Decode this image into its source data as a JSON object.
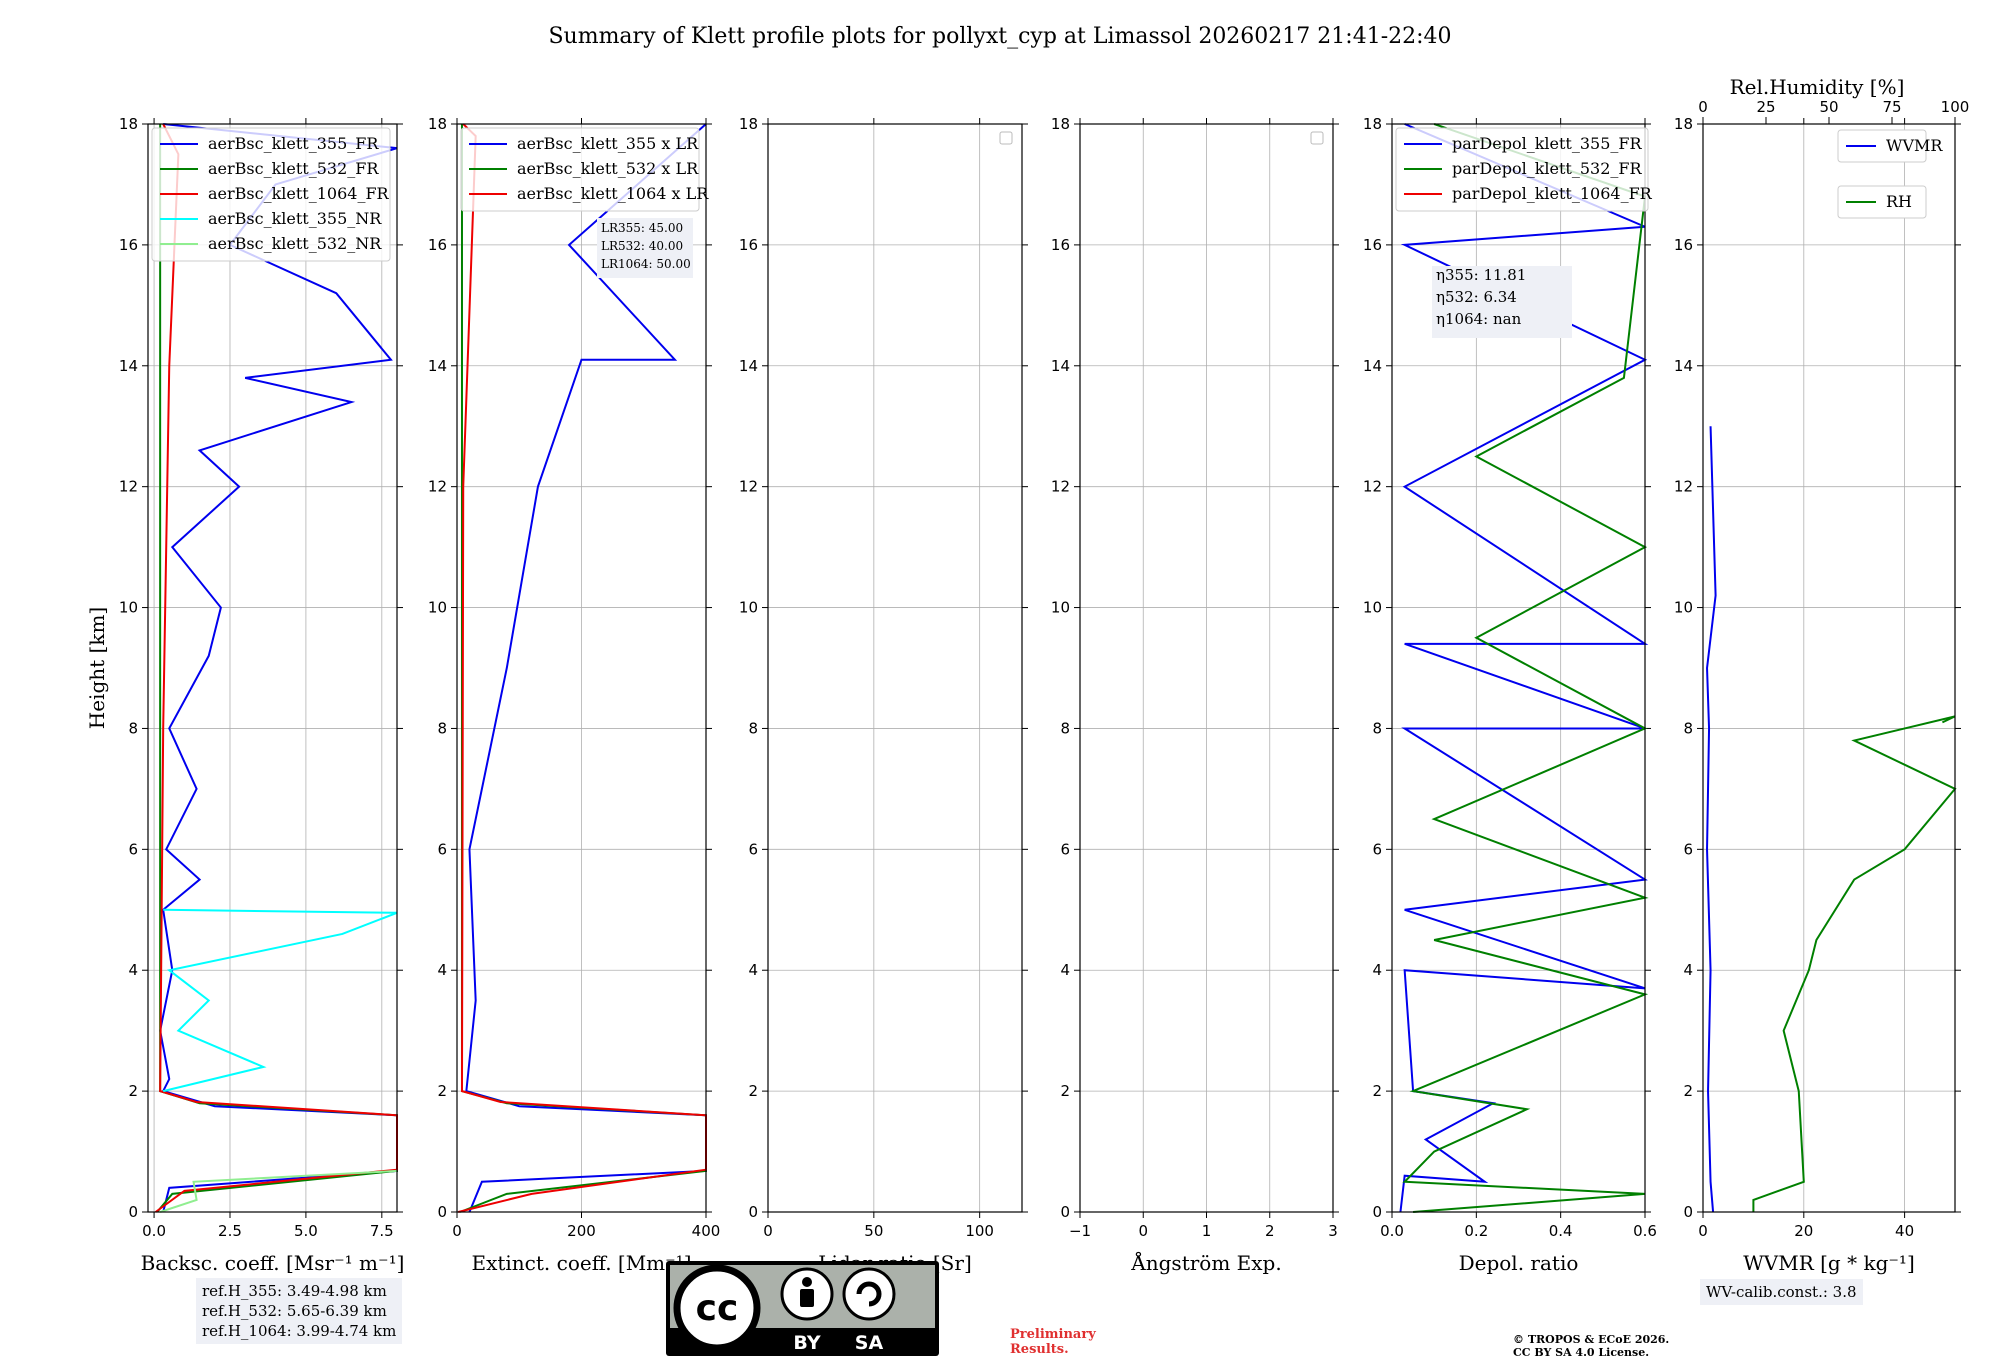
{
  "title": "Summary of Klett profile plots for pollyxt_cyp at Limassol 20260217 21:41-22:40",
  "colors": {
    "c355": "#0000ee",
    "c532": "#008000",
    "c1064": "#ee0000",
    "c355nr": "#00ffff",
    "c532nr": "#90ee90"
  },
  "chart_data": [
    {
      "type": "line",
      "name": "backscatter",
      "xlabel": "Backsc. coeff. [Msr⁻¹ m⁻¹]",
      "ylabel": "Height [km]",
      "xlim": [
        -0.2,
        8.0
      ],
      "ylim": [
        0,
        18
      ],
      "xticks": [
        "0.0",
        "2.5",
        "5.0",
        "7.5"
      ],
      "xtick_values": [
        0,
        2.5,
        5,
        7.5
      ],
      "yticks": [
        "0",
        "2",
        "4",
        "6",
        "8",
        "10",
        "12",
        "14",
        "16",
        "18"
      ],
      "legend": [
        "aerBsc_klett_355_FR",
        "aerBsc_klett_532_FR",
        "aerBsc_klett_1064_FR",
        "aerBsc_klett_355_NR",
        "aerBsc_klett_532_NR"
      ],
      "series": [
        {
          "name": "aerBsc_klett_355_FR",
          "points": [
            [
              0.3,
              0
            ],
            [
              0.5,
              0.4
            ],
            [
              8,
              0.68
            ],
            [
              8,
              1.6
            ],
            [
              2.0,
              1.75
            ],
            [
              0.3,
              2.0
            ],
            [
              0.5,
              2.2
            ],
            [
              0.2,
              3.0
            ],
            [
              0.6,
              4.0
            ],
            [
              0.3,
              5.0
            ],
            [
              1.5,
              5.5
            ],
            [
              0.4,
              6.0
            ],
            [
              1.4,
              7.0
            ],
            [
              0.5,
              8.0
            ],
            [
              1.8,
              9.2
            ],
            [
              2.2,
              10.0
            ],
            [
              0.6,
              11.0
            ],
            [
              2.8,
              12.0
            ],
            [
              1.5,
              12.6
            ],
            [
              6.5,
              13.4
            ],
            [
              3.0,
              13.8
            ],
            [
              7.8,
              14.1
            ],
            [
              6.0,
              15.2
            ],
            [
              2.5,
              16.0
            ],
            [
              4.0,
              17.0
            ],
            [
              8,
              17.6
            ],
            [
              0.3,
              18
            ]
          ]
        },
        {
          "name": "aerBsc_klett_532_FR",
          "points": [
            [
              0.1,
              0
            ],
            [
              0.6,
              0.3
            ],
            [
              8,
              0.68
            ],
            [
              8,
              1.6
            ],
            [
              1.5,
              1.8
            ],
            [
              0.2,
              2.0
            ],
            [
              0.2,
              18
            ]
          ]
        },
        {
          "name": "aerBsc_klett_1064_FR",
          "points": [
            [
              0.05,
              0
            ],
            [
              1.0,
              0.35
            ],
            [
              8,
              0.7
            ],
            [
              8,
              1.6
            ],
            [
              1.4,
              1.82
            ],
            [
              0.2,
              2.0
            ],
            [
              0.3,
              8.0
            ],
            [
              0.5,
              14.0
            ],
            [
              0.8,
              17.5
            ],
            [
              0.3,
              18
            ]
          ]
        },
        {
          "name": "aerBsc_klett_355_NR",
          "points": [
            [
              0.3,
              2.0
            ],
            [
              3.6,
              2.4
            ],
            [
              0.8,
              3.0
            ],
            [
              1.8,
              3.5
            ],
            [
              0.5,
              4.0
            ],
            [
              6.2,
              4.6
            ],
            [
              8,
              4.95
            ],
            [
              0.3,
              5.0
            ]
          ]
        },
        {
          "name": "aerBsc_klett_532_NR",
          "points": [
            [
              0.2,
              0
            ],
            [
              1.4,
              0.2
            ],
            [
              1.3,
              0.5
            ],
            [
              8,
              0.68
            ]
          ]
        }
      ]
    },
    {
      "type": "line",
      "name": "extinction",
      "xlabel": "Extinct. coeff. [Mm⁻¹]",
      "xlim": [
        0,
        400
      ],
      "ylim": [
        0,
        18
      ],
      "xticks": [
        "0",
        "200",
        "400"
      ],
      "xtick_values": [
        0,
        200,
        400
      ],
      "yticks": [
        "0",
        "2",
        "4",
        "6",
        "8",
        "10",
        "12",
        "14",
        "16",
        "18"
      ],
      "legend": [
        "aerBsc_klett_355 x LR",
        "aerBsc_klett_532 x LR",
        "aerBsc_klett_1064 x LR"
      ],
      "annotation": [
        "LR355: 45.00",
        "LR532: 40.00",
        "LR1064: 50.00"
      ],
      "series": [
        {
          "name": "aerBsc_klett_355 x LR",
          "points": [
            [
              20,
              0
            ],
            [
              40,
              0.5
            ],
            [
              400,
              0.68
            ],
            [
              400,
              1.6
            ],
            [
              100,
              1.75
            ],
            [
              15,
              2.0
            ],
            [
              30,
              3.5
            ],
            [
              20,
              6.0
            ],
            [
              80,
              9.0
            ],
            [
              130,
              12.0
            ],
            [
              200,
              14.1
            ],
            [
              350,
              14.1
            ],
            [
              180,
              16.0
            ],
            [
              400,
              18
            ]
          ]
        },
        {
          "name": "aerBsc_klett_532 x LR",
          "points": [
            [
              5,
              0
            ],
            [
              80,
              0.3
            ],
            [
              400,
              0.68
            ],
            [
              400,
              1.6
            ],
            [
              80,
              1.8
            ],
            [
              8,
              2.0
            ],
            [
              8,
              18
            ]
          ]
        },
        {
          "name": "aerBsc_klett_1064 x LR",
          "points": [
            [
              2,
              0
            ],
            [
              120,
              0.3
            ],
            [
              400,
              0.7
            ],
            [
              400,
              1.6
            ],
            [
              70,
              1.82
            ],
            [
              8,
              2.0
            ],
            [
              10,
              12.0
            ],
            [
              30,
              17.8
            ],
            [
              10,
              18
            ]
          ]
        }
      ]
    },
    {
      "type": "line",
      "name": "lidar-ratio",
      "xlabel": "Lidar ratio [Sr]",
      "xlim": [
        0,
        120
      ],
      "ylim": [
        0,
        18
      ],
      "xticks": [
        "0",
        "50",
        "100"
      ],
      "xtick_values": [
        0,
        50,
        100
      ],
      "yticks": [
        "0",
        "2",
        "4",
        "6",
        "8",
        "10",
        "12",
        "14",
        "16",
        "18"
      ],
      "series": []
    },
    {
      "type": "line",
      "name": "angstrom",
      "xlabel": "Ångström Exp.",
      "xlim": [
        -1,
        3
      ],
      "ylim": [
        0,
        18
      ],
      "xticks": [
        "−1",
        "0",
        "1",
        "2",
        "3"
      ],
      "xtick_values": [
        -1,
        0,
        1,
        2,
        3
      ],
      "yticks": [
        "0",
        "2",
        "4",
        "6",
        "8",
        "10",
        "12",
        "14",
        "16",
        "18"
      ],
      "series": []
    },
    {
      "type": "line",
      "name": "depolarization",
      "xlabel": "Depol. ratio",
      "xlim": [
        0,
        0.6
      ],
      "ylim": [
        0,
        18
      ],
      "xticks": [
        "0.0",
        "0.2",
        "0.4",
        "0.6"
      ],
      "xtick_values": [
        0,
        0.2,
        0.4,
        0.6
      ],
      "yticks": [
        "0",
        "2",
        "4",
        "6",
        "8",
        "10",
        "12",
        "14",
        "16",
        "18"
      ],
      "legend": [
        "parDepol_klett_355_FR",
        "parDepol_klett_532_FR",
        "parDepol_klett_1064_FR"
      ],
      "annotation": [
        "η355: 11.81",
        "η532: 6.34",
        "η1064: nan"
      ],
      "series": [
        {
          "name": "parDepol_klett_355_FR",
          "points": [
            [
              0.02,
              0
            ],
            [
              0.03,
              0.6
            ],
            [
              0.22,
              0.5
            ],
            [
              0.08,
              1.2
            ],
            [
              0.24,
              1.8
            ],
            [
              0.05,
              2.0
            ],
            [
              0.03,
              4.0
            ],
            [
              0.6,
              3.7
            ],
            [
              0.03,
              5.0
            ],
            [
              0.6,
              5.5
            ],
            [
              0.03,
              8.0
            ],
            [
              0.6,
              8.0
            ],
            [
              0.03,
              9.4
            ],
            [
              0.6,
              9.4
            ],
            [
              0.03,
              12.0
            ],
            [
              0.6,
              14.1
            ],
            [
              0.03,
              16.0
            ],
            [
              0.6,
              16.3
            ],
            [
              0.03,
              18
            ]
          ]
        },
        {
          "name": "parDepol_klett_532_FR",
          "points": [
            [
              0.05,
              0
            ],
            [
              0.6,
              0.3
            ],
            [
              0.03,
              0.5
            ],
            [
              0.1,
              1.0
            ],
            [
              0.32,
              1.7
            ],
            [
              0.05,
              2.0
            ],
            [
              0.6,
              3.6
            ],
            [
              0.1,
              4.5
            ],
            [
              0.6,
              5.2
            ],
            [
              0.1,
              6.5
            ],
            [
              0.6,
              8.0
            ],
            [
              0.2,
              9.5
            ],
            [
              0.6,
              11.0
            ],
            [
              0.2,
              12.5
            ],
            [
              0.55,
              13.8
            ],
            [
              0.6,
              16.8
            ],
            [
              0.1,
              18
            ]
          ]
        },
        {
          "name": "parDepol_klett_1064_FR",
          "points": []
        }
      ]
    },
    {
      "type": "line",
      "name": "water-vapor",
      "xlabel": "WVMR [g * kg⁻¹]",
      "xlabel_top": "Rel.Humidity [%]",
      "xlim": [
        0,
        50
      ],
      "xlim_top": [
        0,
        100
      ],
      "ylim": [
        0,
        18
      ],
      "xticks": [
        "0",
        "20",
        "40"
      ],
      "xtick_values": [
        0,
        20,
        40
      ],
      "xticks_top": [
        "0",
        "25",
        "50",
        "75",
        "100"
      ],
      "xtick_top_values": [
        0,
        25,
        50,
        75,
        100
      ],
      "yticks": [
        "0",
        "2",
        "4",
        "6",
        "8",
        "10",
        "12",
        "14",
        "16",
        "18"
      ],
      "legend": [
        "WVMR",
        "RH"
      ],
      "series": [
        {
          "name": "WVMR",
          "axis": "bottom",
          "points": [
            [
              2,
              0
            ],
            [
              1.5,
              0.5
            ],
            [
              1,
              2.0
            ],
            [
              1.5,
              4.0
            ],
            [
              0.8,
              6.0
            ],
            [
              1.2,
              8.0
            ],
            [
              0.8,
              9.0
            ],
            [
              2.5,
              10.2
            ],
            [
              1.5,
              13.0
            ]
          ]
        },
        {
          "name": "RH",
          "axis": "top",
          "points": [
            [
              20,
              0
            ],
            [
              20,
              0.2
            ],
            [
              40,
              0.5
            ],
            [
              38,
              2.0
            ],
            [
              32,
              3.0
            ],
            [
              42,
              4.0
            ],
            [
              45,
              4.5
            ],
            [
              60,
              5.5
            ],
            [
              80,
              6.0
            ],
            [
              100,
              7.0
            ],
            [
              60,
              7.8
            ],
            [
              100,
              8.2
            ],
            [
              95,
              8.1
            ]
          ]
        }
      ]
    }
  ],
  "info": {
    "refh": [
      "ref.H_355: 3.49-4.98 km",
      "ref.H_532: 5.65-6.39 km",
      "ref.H_1064: 3.99-4.74 km"
    ],
    "wv_calib": "WV-calib.const.: 3.8",
    "preliminary": [
      "Preliminary",
      "Results."
    ],
    "copyright": [
      "© TROPOS & ECoE 2026.",
      "CC BY SA 4.0 License."
    ],
    "cc_labels": [
      "cc",
      "BY",
      "SA"
    ]
  }
}
